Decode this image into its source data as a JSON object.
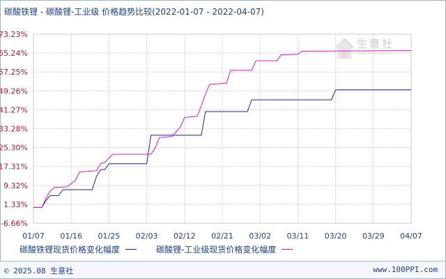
{
  "title": "碳酸铁锂 - 碳酸锂-工业级 价格趋势比较(2022-01-07 - 2022-04-07)",
  "footer": {
    "copyright": "© 2025.08 生意社",
    "site": "www.100PPI.com"
  },
  "watermark": {
    "name": "生意社",
    "sub": "100PPI.COM"
  },
  "colors": {
    "series1": "#1c1ca8",
    "series2": "#e010e0",
    "grid": "#c8c8c8",
    "axis_label": "#c0142b",
    "x_label": "#1a3d8f"
  },
  "chart_data": {
    "type": "line",
    "title": "碳酸铁锂 - 碳酸锂-工业级 价格趋势比较(2022-01-07 - 2022-04-07)",
    "x_range": [
      "2022-01-07",
      "2022-04-07"
    ],
    "ylim": [
      -6.66,
      73.23
    ],
    "y_ticks": [
      "73.23%",
      "65.24%",
      "57.25%",
      "49.26%",
      "41.27%",
      "33.28%",
      "25.30%",
      "17.31%",
      "9.32%",
      "1.33%",
      "-6.66%"
    ],
    "y_tick_values": [
      73.23,
      65.24,
      57.25,
      49.26,
      41.27,
      33.28,
      25.3,
      17.31,
      9.32,
      1.33,
      -6.66
    ],
    "x_ticks": [
      "01/07",
      "01/16",
      "01/25",
      "02/03",
      "02/12",
      "02/21",
      "03/02",
      "03/11",
      "03/20",
      "03/29",
      "04/07"
    ],
    "x_tick_days": [
      0,
      9,
      18,
      27,
      36,
      45,
      54,
      63,
      72,
      81,
      90
    ],
    "grid": true,
    "series": [
      {
        "name": "碳酸铁锂现货价格变化幅度",
        "color": "#1c1ca8",
        "points": [
          [
            0,
            0
          ],
          [
            2,
            0
          ],
          [
            3,
            3
          ],
          [
            4,
            5
          ],
          [
            6,
            5
          ],
          [
            7,
            7.5
          ],
          [
            12,
            7.5
          ],
          [
            14,
            7.5
          ],
          [
            15,
            13
          ],
          [
            16,
            16
          ],
          [
            17,
            16
          ],
          [
            18,
            18.5
          ],
          [
            26,
            18.5
          ],
          [
            27,
            18.5
          ],
          [
            28,
            30.5
          ],
          [
            40,
            30.5
          ],
          [
            41,
            40.5
          ],
          [
            51,
            40.5
          ],
          [
            52,
            45.5
          ],
          [
            71,
            45.5
          ],
          [
            72,
            49.7
          ],
          [
            90,
            49.7
          ]
        ]
      },
      {
        "name": "碳酸锂-工业级现货价格变化幅度",
        "color": "#e010e0",
        "points": [
          [
            0,
            0
          ],
          [
            2,
            0
          ],
          [
            3,
            4
          ],
          [
            4,
            7
          ],
          [
            5,
            8.5
          ],
          [
            8,
            8.7
          ],
          [
            9,
            10
          ],
          [
            10,
            11.5
          ],
          [
            11,
            15
          ],
          [
            15,
            15.5
          ],
          [
            16,
            18.5
          ],
          [
            17,
            19
          ],
          [
            18,
            21
          ],
          [
            19,
            22.5
          ],
          [
            28,
            22.5
          ],
          [
            29,
            25
          ],
          [
            30,
            29.5
          ],
          [
            33,
            30
          ],
          [
            35,
            34
          ],
          [
            36,
            38
          ],
          [
            39,
            38.5
          ],
          [
            40,
            43
          ],
          [
            41,
            48
          ],
          [
            42,
            52
          ],
          [
            46,
            52.5
          ],
          [
            47,
            58
          ],
          [
            52,
            58
          ],
          [
            53,
            62
          ],
          [
            58,
            62
          ],
          [
            59,
            64.5
          ],
          [
            63,
            64.7
          ],
          [
            64,
            66
          ],
          [
            90,
            66.3
          ]
        ]
      }
    ],
    "legend": [
      "碳酸铁锂现货价格变化幅度",
      "碳酸锂-工业级现货价格变化幅度"
    ],
    "legend_position": "bottom"
  }
}
